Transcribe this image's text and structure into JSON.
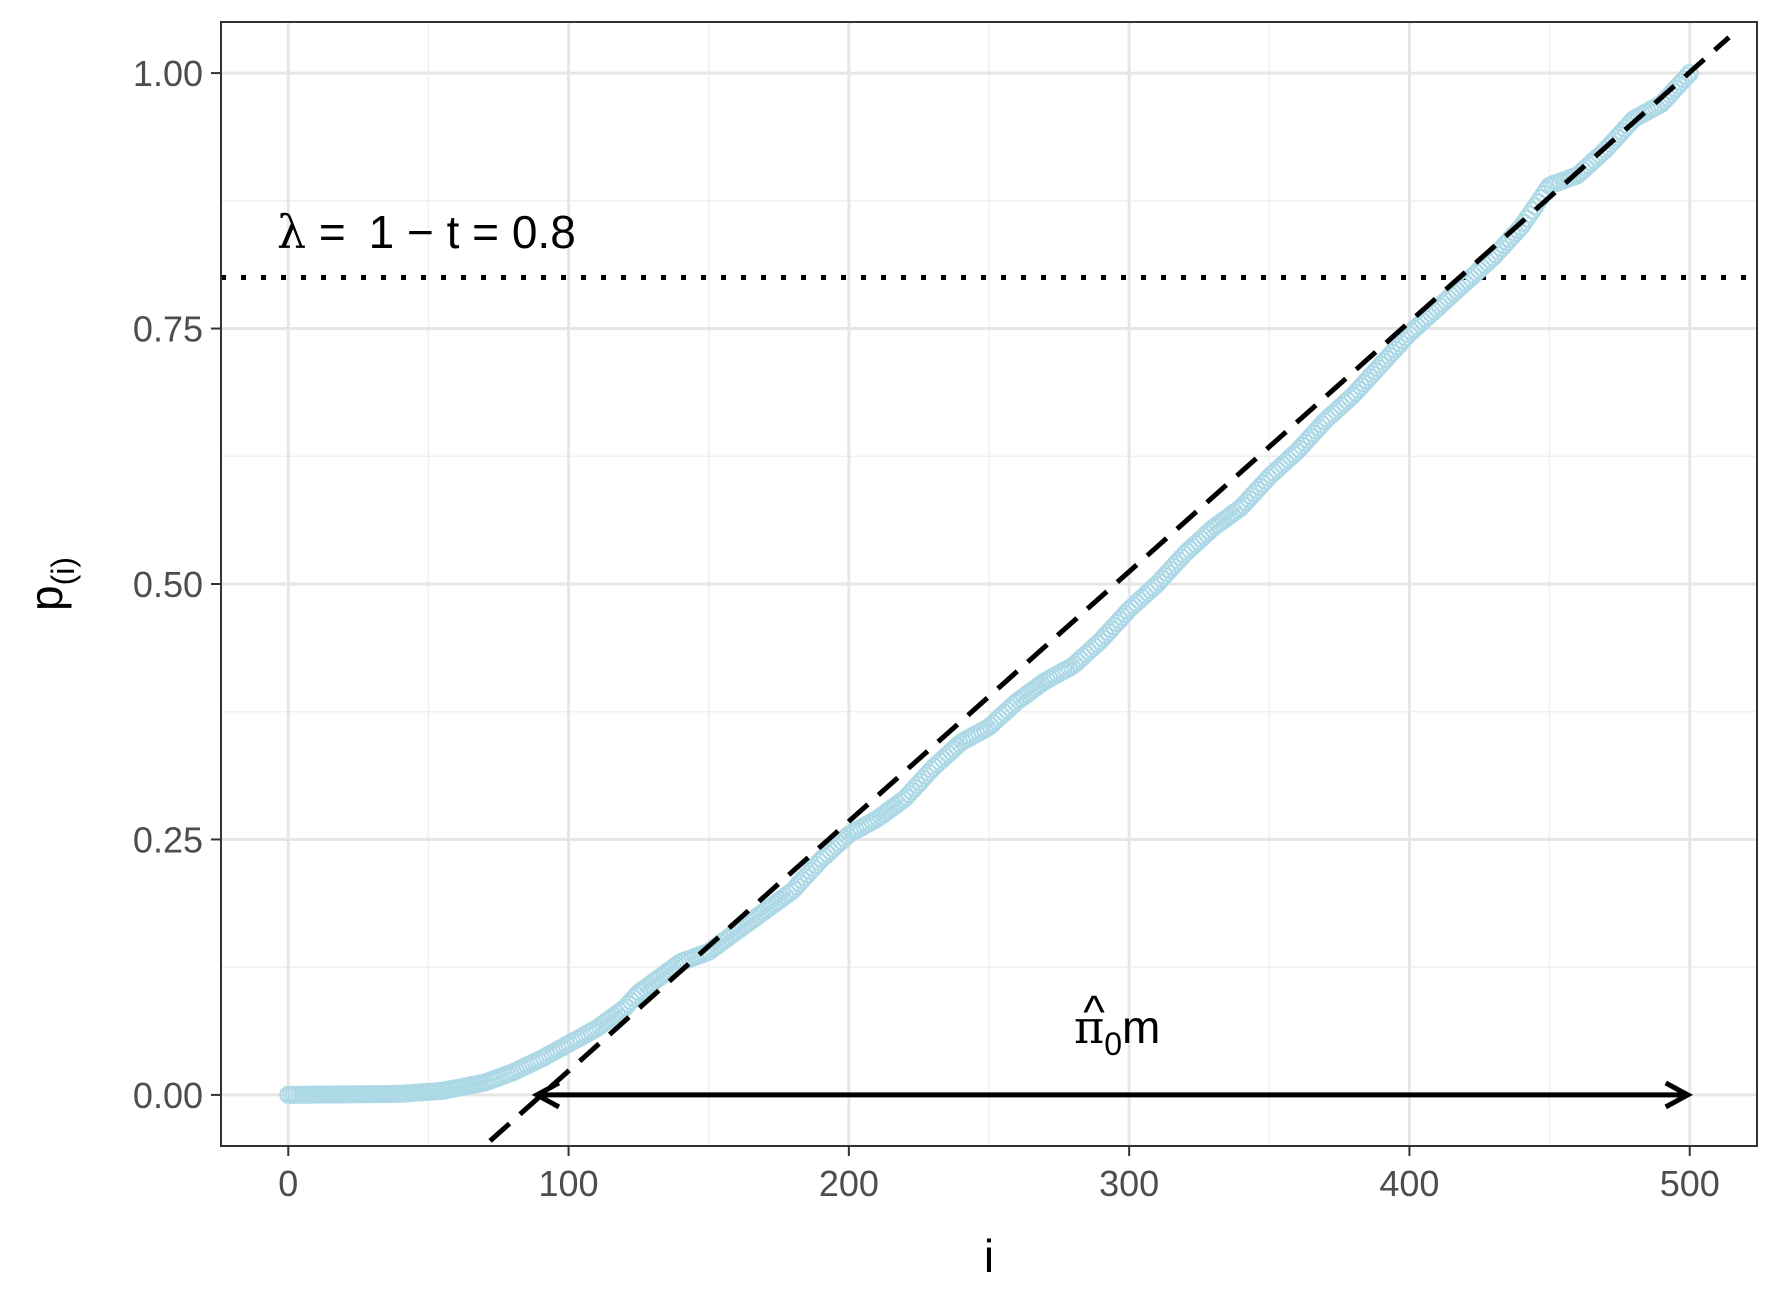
{
  "chart_data": {
    "type": "scatter",
    "xlabel": "i",
    "ylabel": {
      "main": "p",
      "sub": "(i)"
    },
    "xlim": [
      -24,
      524
    ],
    "ylim": [
      -0.05,
      1.05
    ],
    "x_ticks": [
      0,
      100,
      200,
      300,
      400,
      500
    ],
    "x_tick_labels": [
      "0",
      "100",
      "200",
      "300",
      "400",
      "500"
    ],
    "y_ticks": [
      0.0,
      0.25,
      0.5,
      0.75,
      1.0
    ],
    "y_tick_labels": [
      "0.00",
      "0.25",
      "0.50",
      "0.75",
      "1.00"
    ],
    "grid": true,
    "series": [
      {
        "marker": "open-circle",
        "color": "#add8e6",
        "n_points": 500,
        "x": [
          0,
          40,
          55,
          70,
          80,
          90,
          100,
          110,
          120,
          125,
          130,
          140,
          150,
          160,
          170,
          180,
          190,
          200,
          210,
          220,
          230,
          240,
          250,
          260,
          270,
          280,
          290,
          300,
          310,
          320,
          330,
          340,
          350,
          360,
          370,
          380,
          390,
          400,
          410,
          420,
          430,
          440,
          450,
          460,
          470,
          480,
          490,
          500
        ],
        "y": [
          0.0,
          0.001,
          0.004,
          0.012,
          0.022,
          0.035,
          0.05,
          0.065,
          0.085,
          0.1,
          0.11,
          0.13,
          0.14,
          0.16,
          0.18,
          0.2,
          0.23,
          0.255,
          0.27,
          0.29,
          0.32,
          0.345,
          0.36,
          0.385,
          0.405,
          0.42,
          0.445,
          0.475,
          0.5,
          0.53,
          0.555,
          0.575,
          0.605,
          0.63,
          0.66,
          0.685,
          0.715,
          0.745,
          0.77,
          0.795,
          0.82,
          0.85,
          0.89,
          0.9,
          0.925,
          0.955,
          0.97,
          1.0
        ]
      }
    ],
    "reference_lines": [
      {
        "kind": "fit",
        "style": "dashed",
        "color": "#000000",
        "x": [
          72,
          514
        ],
        "y": [
          -0.045,
          1.035
        ]
      },
      {
        "kind": "threshold",
        "style": "dotted",
        "color": "#000000",
        "y": 0.8
      }
    ],
    "arrow": {
      "x_from": 88,
      "x_to": 500,
      "y": 0.0,
      "both_ends": true,
      "color": "#000000"
    },
    "annotations": [
      {
        "id": "lambda",
        "segments": [
          "λ",
          " = ",
          "1",
          " − ",
          "t",
          " = ",
          "0.8"
        ]
      },
      {
        "id": "pi0m",
        "hat": "^",
        "main": "π",
        "sub": "0",
        "tail": "m"
      }
    ]
  }
}
